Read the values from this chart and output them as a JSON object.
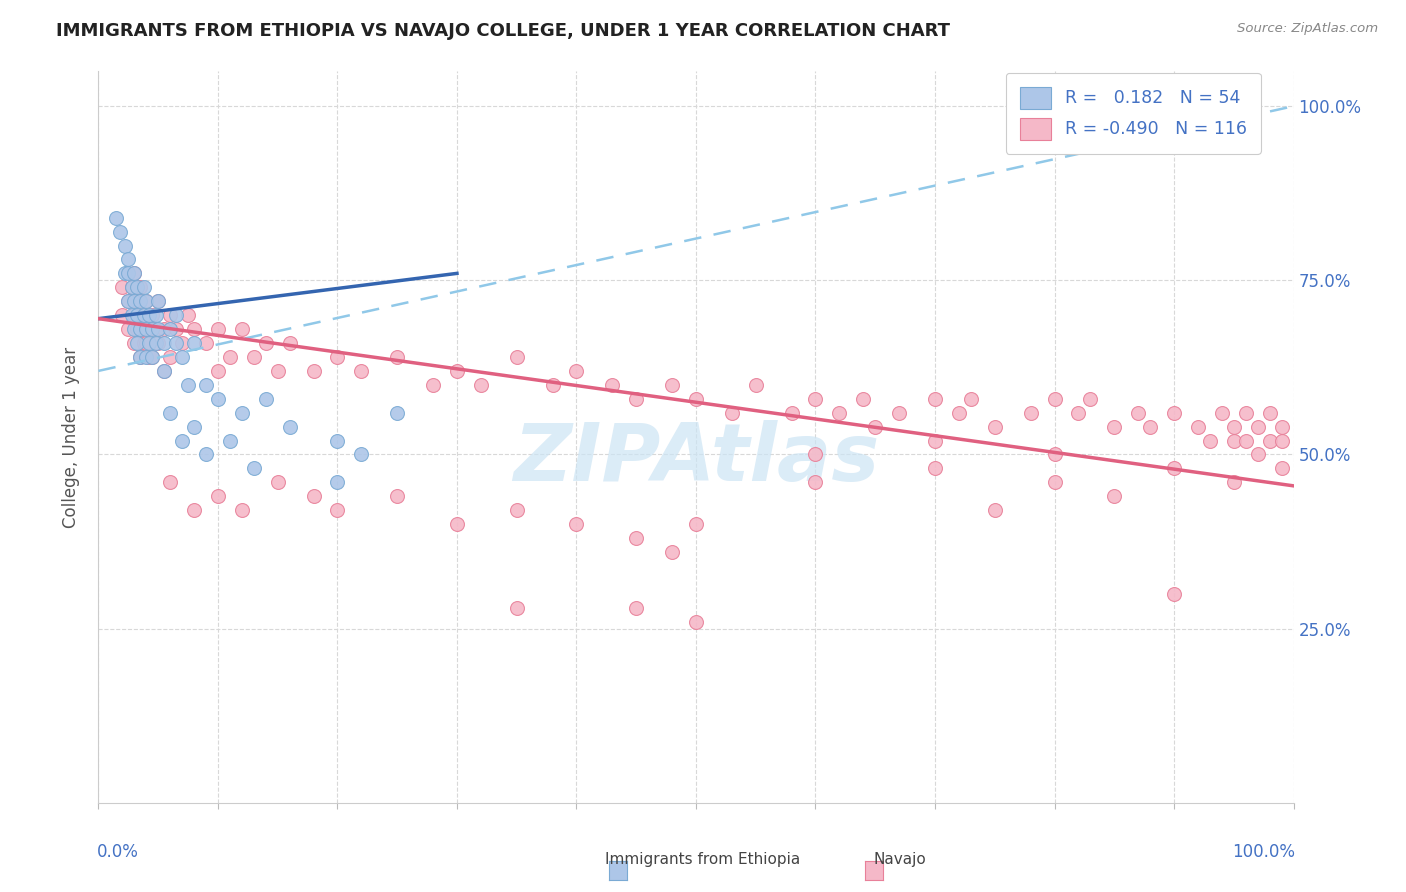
{
  "title": "IMMIGRANTS FROM ETHIOPIA VS NAVAJO COLLEGE, UNDER 1 YEAR CORRELATION CHART",
  "source_text": "Source: ZipAtlas.com",
  "ylabel": "College, Under 1 year",
  "legend_blue": {
    "R": "0.182",
    "N": "54"
  },
  "legend_pink": {
    "R": "-0.490",
    "N": "116"
  },
  "blue_color": "#adc6e8",
  "blue_edge_color": "#7aaad4",
  "pink_color": "#f5b8c8",
  "pink_edge_color": "#e88099",
  "blue_line_color": "#3465b0",
  "pink_line_color": "#e06080",
  "dashed_line_color": "#90c8e8",
  "watermark_color": "#cce4f4",
  "blue_scatter": [
    [
      0.015,
      0.84
    ],
    [
      0.018,
      0.82
    ],
    [
      0.022,
      0.76
    ],
    [
      0.022,
      0.8
    ],
    [
      0.025,
      0.76
    ],
    [
      0.025,
      0.72
    ],
    [
      0.025,
      0.78
    ],
    [
      0.028,
      0.74
    ],
    [
      0.028,
      0.7
    ],
    [
      0.03,
      0.76
    ],
    [
      0.03,
      0.72
    ],
    [
      0.03,
      0.68
    ],
    [
      0.032,
      0.74
    ],
    [
      0.032,
      0.7
    ],
    [
      0.032,
      0.66
    ],
    [
      0.035,
      0.72
    ],
    [
      0.035,
      0.68
    ],
    [
      0.035,
      0.64
    ],
    [
      0.038,
      0.74
    ],
    [
      0.038,
      0.7
    ],
    [
      0.04,
      0.72
    ],
    [
      0.04,
      0.68
    ],
    [
      0.04,
      0.64
    ],
    [
      0.042,
      0.7
    ],
    [
      0.042,
      0.66
    ],
    [
      0.045,
      0.68
    ],
    [
      0.045,
      0.64
    ],
    [
      0.048,
      0.7
    ],
    [
      0.048,
      0.66
    ],
    [
      0.05,
      0.72
    ],
    [
      0.05,
      0.68
    ],
    [
      0.055,
      0.66
    ],
    [
      0.055,
      0.62
    ],
    [
      0.06,
      0.68
    ],
    [
      0.065,
      0.7
    ],
    [
      0.065,
      0.66
    ],
    [
      0.07,
      0.64
    ],
    [
      0.075,
      0.6
    ],
    [
      0.08,
      0.66
    ],
    [
      0.09,
      0.6
    ],
    [
      0.1,
      0.58
    ],
    [
      0.12,
      0.56
    ],
    [
      0.14,
      0.58
    ],
    [
      0.16,
      0.54
    ],
    [
      0.2,
      0.52
    ],
    [
      0.2,
      0.46
    ],
    [
      0.22,
      0.5
    ],
    [
      0.25,
      0.56
    ],
    [
      0.06,
      0.56
    ],
    [
      0.07,
      0.52
    ],
    [
      0.08,
      0.54
    ],
    [
      0.09,
      0.5
    ],
    [
      0.11,
      0.52
    ],
    [
      0.13,
      0.48
    ]
  ],
  "pink_scatter": [
    [
      0.02,
      0.74
    ],
    [
      0.02,
      0.7
    ],
    [
      0.025,
      0.72
    ],
    [
      0.025,
      0.68
    ],
    [
      0.028,
      0.74
    ],
    [
      0.03,
      0.76
    ],
    [
      0.03,
      0.7
    ],
    [
      0.03,
      0.66
    ],
    [
      0.032,
      0.72
    ],
    [
      0.032,
      0.68
    ],
    [
      0.035,
      0.74
    ],
    [
      0.035,
      0.68
    ],
    [
      0.035,
      0.64
    ],
    [
      0.038,
      0.7
    ],
    [
      0.038,
      0.66
    ],
    [
      0.04,
      0.72
    ],
    [
      0.04,
      0.66
    ],
    [
      0.042,
      0.68
    ],
    [
      0.042,
      0.64
    ],
    [
      0.045,
      0.7
    ],
    [
      0.045,
      0.64
    ],
    [
      0.048,
      0.68
    ],
    [
      0.05,
      0.72
    ],
    [
      0.05,
      0.66
    ],
    [
      0.055,
      0.68
    ],
    [
      0.055,
      0.62
    ],
    [
      0.06,
      0.7
    ],
    [
      0.06,
      0.64
    ],
    [
      0.065,
      0.68
    ],
    [
      0.07,
      0.66
    ],
    [
      0.075,
      0.7
    ],
    [
      0.08,
      0.68
    ],
    [
      0.09,
      0.66
    ],
    [
      0.1,
      0.68
    ],
    [
      0.1,
      0.62
    ],
    [
      0.11,
      0.64
    ],
    [
      0.12,
      0.68
    ],
    [
      0.13,
      0.64
    ],
    [
      0.14,
      0.66
    ],
    [
      0.15,
      0.62
    ],
    [
      0.16,
      0.66
    ],
    [
      0.18,
      0.62
    ],
    [
      0.2,
      0.64
    ],
    [
      0.22,
      0.62
    ],
    [
      0.25,
      0.64
    ],
    [
      0.28,
      0.6
    ],
    [
      0.3,
      0.62
    ],
    [
      0.32,
      0.6
    ],
    [
      0.35,
      0.64
    ],
    [
      0.38,
      0.6
    ],
    [
      0.4,
      0.62
    ],
    [
      0.43,
      0.6
    ],
    [
      0.45,
      0.58
    ],
    [
      0.48,
      0.6
    ],
    [
      0.5,
      0.58
    ],
    [
      0.53,
      0.56
    ],
    [
      0.55,
      0.6
    ],
    [
      0.58,
      0.56
    ],
    [
      0.6,
      0.58
    ],
    [
      0.62,
      0.56
    ],
    [
      0.64,
      0.58
    ],
    [
      0.65,
      0.54
    ],
    [
      0.67,
      0.56
    ],
    [
      0.7,
      0.58
    ],
    [
      0.72,
      0.56
    ],
    [
      0.73,
      0.58
    ],
    [
      0.75,
      0.54
    ],
    [
      0.78,
      0.56
    ],
    [
      0.8,
      0.58
    ],
    [
      0.82,
      0.56
    ],
    [
      0.83,
      0.58
    ],
    [
      0.85,
      0.54
    ],
    [
      0.87,
      0.56
    ],
    [
      0.88,
      0.54
    ],
    [
      0.9,
      0.56
    ],
    [
      0.92,
      0.54
    ],
    [
      0.93,
      0.52
    ],
    [
      0.94,
      0.56
    ],
    [
      0.95,
      0.52
    ],
    [
      0.95,
      0.54
    ],
    [
      0.96,
      0.52
    ],
    [
      0.96,
      0.56
    ],
    [
      0.97,
      0.54
    ],
    [
      0.97,
      0.5
    ],
    [
      0.98,
      0.52
    ],
    [
      0.98,
      0.56
    ],
    [
      0.99,
      0.52
    ],
    [
      0.99,
      0.48
    ],
    [
      0.99,
      0.54
    ],
    [
      0.6,
      0.5
    ],
    [
      0.7,
      0.52
    ],
    [
      0.8,
      0.5
    ],
    [
      0.6,
      0.46
    ],
    [
      0.7,
      0.48
    ],
    [
      0.8,
      0.46
    ],
    [
      0.75,
      0.42
    ],
    [
      0.85,
      0.44
    ],
    [
      0.9,
      0.48
    ],
    [
      0.95,
      0.46
    ],
    [
      0.06,
      0.46
    ],
    [
      0.08,
      0.42
    ],
    [
      0.1,
      0.44
    ],
    [
      0.12,
      0.42
    ],
    [
      0.15,
      0.46
    ],
    [
      0.18,
      0.44
    ],
    [
      0.2,
      0.42
    ],
    [
      0.25,
      0.44
    ],
    [
      0.3,
      0.4
    ],
    [
      0.35,
      0.42
    ],
    [
      0.4,
      0.4
    ],
    [
      0.45,
      0.38
    ],
    [
      0.48,
      0.36
    ],
    [
      0.5,
      0.4
    ],
    [
      0.35,
      0.28
    ],
    [
      0.45,
      0.28
    ],
    [
      0.5,
      0.26
    ],
    [
      0.9,
      0.3
    ]
  ],
  "blue_trendline_x": [
    0.0,
    0.3
  ],
  "blue_trendline_y": [
    0.695,
    0.76
  ],
  "pink_trendline_x": [
    0.0,
    1.0
  ],
  "pink_trendline_y": [
    0.695,
    0.455
  ],
  "dashed_line_x": [
    0.0,
    1.0
  ],
  "dashed_line_y": [
    0.62,
    1.0
  ],
  "xlim": [
    0.0,
    1.0
  ],
  "ylim": [
    0.0,
    1.05
  ],
  "ytick_positions": [
    0.25,
    0.5,
    0.75,
    1.0
  ],
  "ytick_labels": [
    "25.0%",
    "50.0%",
    "75.0%",
    "100.0%"
  ],
  "title_fontsize": 13,
  "axis_label_color": "#4472c4",
  "grid_color": "#d8d8d8",
  "spine_color": "#cccccc"
}
